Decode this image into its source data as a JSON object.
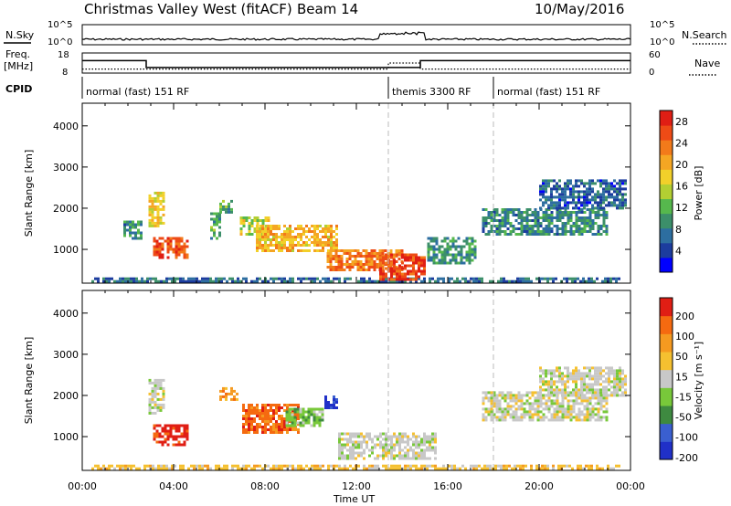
{
  "header": {
    "title": "Christmas Valley West (fitACF)",
    "beam": "Beam 14",
    "date": "10/May/2016"
  },
  "status_panels": {
    "nsky_label": "N.Sky",
    "nsearch_label": "N.Search",
    "noise_ticks": [
      "10^5",
      "10^0"
    ],
    "noise_ticks_right": [
      "10^5",
      "10^0"
    ],
    "freq_label": "Freq.",
    "freq_unit": "[MHz]",
    "freq_ticks": [
      "18",
      "8"
    ],
    "nave_label": "Nave",
    "nave_ticks": [
      "60",
      "0"
    ],
    "cpid_label": "CPID",
    "cpid_segments": [
      {
        "label": "normal (fast) 151 RF",
        "start_h": 0.0,
        "end_h": 13.4
      },
      {
        "label": "themis 3300 RF",
        "start_h": 13.4,
        "end_h": 18.0
      },
      {
        "label": "normal (fast) 151 RF",
        "start_h": 18.0,
        "end_h": 24.0
      }
    ],
    "freq_trace_mhz": [
      [
        0,
        14.2
      ],
      [
        2.8,
        14.2
      ],
      [
        2.8,
        10.8
      ],
      [
        13.4,
        10.8
      ],
      [
        14.8,
        10.8
      ],
      [
        14.8,
        14.2
      ],
      [
        24,
        14.2
      ]
    ],
    "nave_trace": [
      [
        0,
        12
      ],
      [
        13.4,
        12
      ],
      [
        13.4,
        30
      ],
      [
        14.8,
        30
      ],
      [
        14.8,
        12
      ],
      [
        24,
        12
      ]
    ]
  },
  "chart_data": [
    {
      "type": "heatmap",
      "name": "Power",
      "ylabel": "Slant Range [km]",
      "xlabel": "Time UT",
      "x_ticks": [
        "00:00",
        "04:00",
        "08:00",
        "12:00",
        "16:00",
        "20:00",
        "00:00"
      ],
      "y_ticks": [
        1000,
        2000,
        3000,
        4000
      ],
      "xlim_hours": [
        0,
        24
      ],
      "ylim_km": [
        180,
        4550
      ],
      "colorbar_label": "Power [dB]",
      "colorbar_ticks": [
        4,
        8,
        12,
        16,
        20,
        24,
        28
      ],
      "colorbar_range": [
        0,
        30
      ],
      "colors": [
        "#0000ff",
        "#1c3c9e",
        "#2d6ea0",
        "#3c8f6a",
        "#56b84d",
        "#b3cf32",
        "#f2d02a",
        "#f5a623",
        "#f27a1a",
        "#ee4b16",
        "#e01e14"
      ],
      "blobs": [
        {
          "t": 0.4,
          "r0": 220,
          "r1": 320,
          "t1": 23.5,
          "v": 6
        },
        {
          "t": 1.8,
          "r0": 1300,
          "r1": 1700,
          "t1": 2.6,
          "v": 8
        },
        {
          "t": 2.9,
          "r0": 1600,
          "r1": 2400,
          "t1": 3.6,
          "v": 18
        },
        {
          "t": 3.1,
          "r0": 800,
          "r1": 1300,
          "t1": 4.6,
          "v": 27
        },
        {
          "t": 5.6,
          "r0": 1300,
          "r1": 1900,
          "t1": 6.0,
          "v": 10
        },
        {
          "t": 6.0,
          "r0": 1900,
          "r1": 2200,
          "t1": 6.5,
          "v": 11
        },
        {
          "t": 6.9,
          "r0": 1400,
          "r1": 1800,
          "t1": 8.2,
          "v": 16
        },
        {
          "t": 7.6,
          "r0": 1000,
          "r1": 1600,
          "t1": 11.2,
          "v": 20
        },
        {
          "t": 10.7,
          "r0": 500,
          "r1": 1000,
          "t1": 14.0,
          "v": 24
        },
        {
          "t": 13.0,
          "r0": 300,
          "r1": 900,
          "t1": 15.0,
          "v": 28
        },
        {
          "t": 15.1,
          "r0": 700,
          "r1": 1300,
          "t1": 17.2,
          "v": 9
        },
        {
          "t": 17.5,
          "r0": 1400,
          "r1": 2000,
          "t1": 23.0,
          "v": 8
        },
        {
          "t": 20.0,
          "r0": 2000,
          "r1": 2700,
          "t1": 23.8,
          "v": 5
        }
      ]
    },
    {
      "type": "heatmap",
      "name": "Velocity",
      "ylabel": "Slant Range [km]",
      "xlabel": "Time UT",
      "x_ticks": [
        "00:00",
        "04:00",
        "08:00",
        "12:00",
        "16:00",
        "20:00",
        "00:00"
      ],
      "y_ticks": [
        1000,
        2000,
        3000,
        4000
      ],
      "xlim_hours": [
        0,
        24
      ],
      "ylim_km": [
        180,
        4550
      ],
      "colorbar_label": "Velocity [m s⁻¹]",
      "colorbar_ticks": [
        200,
        100,
        50,
        15,
        -15,
        -50,
        -100,
        -200
      ],
      "colors": [
        "#2030c8",
        "#3a5fd0",
        "#3e8a40",
        "#78c83a",
        "#c8c8c8",
        "#f5c030",
        "#f59a20",
        "#f56a10",
        "#e01e14"
      ],
      "blobs": [
        {
          "t": 0.4,
          "r0": 220,
          "r1": 320,
          "t1": 23.5,
          "c": 5
        },
        {
          "t": 2.9,
          "r0": 1600,
          "r1": 2400,
          "t1": 3.6,
          "c": 4
        },
        {
          "t": 3.1,
          "r0": 800,
          "r1": 1300,
          "t1": 4.6,
          "c": 8
        },
        {
          "t": 6.0,
          "r0": 1900,
          "r1": 2200,
          "t1": 6.8,
          "c": 6
        },
        {
          "t": 7.0,
          "r0": 1100,
          "r1": 1800,
          "t1": 9.5,
          "c": 7
        },
        {
          "t": 8.9,
          "r0": 1300,
          "r1": 1700,
          "t1": 10.5,
          "c": 3
        },
        {
          "t": 10.6,
          "r0": 1700,
          "r1": 2000,
          "t1": 11.1,
          "c": 0
        },
        {
          "t": 11.2,
          "r0": 500,
          "r1": 1100,
          "t1": 15.5,
          "c": 4
        },
        {
          "t": 17.5,
          "r0": 1400,
          "r1": 2100,
          "t1": 23.0,
          "c": 4
        },
        {
          "t": 20.0,
          "r0": 2000,
          "r1": 2700,
          "t1": 23.8,
          "c": 4
        }
      ]
    }
  ]
}
